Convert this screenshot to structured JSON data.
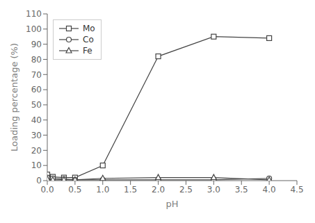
{
  "chart_data": {
    "type": "line",
    "xlabel": "pH",
    "ylabel": "Loading percentage (%)",
    "x": [
      0.0,
      0.1,
      0.3,
      0.5,
      1.0,
      2.0,
      3.0,
      4.0
    ],
    "series": [
      {
        "name": "Mo",
        "color": "#444444",
        "marker": "square",
        "values": [
          4.0,
          2.5,
          2.0,
          2.0,
          10.0,
          82.0,
          95.0,
          94.0
        ]
      },
      {
        "name": "Co",
        "color": "#444444",
        "marker": "circle",
        "values": [
          2.0,
          1.5,
          1.0,
          0.5,
          0.5,
          0.5,
          0.5,
          1.5
        ]
      },
      {
        "name": "Fe",
        "color": "#444444",
        "marker": "triangle",
        "values": [
          1.0,
          0.5,
          0.5,
          0.5,
          1.5,
          2.0,
          2.0,
          0.5
        ]
      }
    ],
    "xlim": [
      0.0,
      4.5
    ],
    "ylim": [
      0,
      110
    ],
    "xticks": [
      {
        "value": 0,
        "label": "0.0"
      },
      0.5,
      {
        "value": 1,
        "label": "1.0"
      },
      1.5,
      {
        "value": 2,
        "label": "2.0"
      },
      2.5,
      {
        "value": 3,
        "label": "3.0"
      },
      3.5,
      {
        "value": 4,
        "label": "4.0"
      },
      4.5
    ],
    "yticks": [
      0,
      10,
      20,
      30,
      40,
      50,
      60,
      70,
      80,
      90,
      100,
      110
    ],
    "grid": false,
    "legend": "upper left"
  }
}
